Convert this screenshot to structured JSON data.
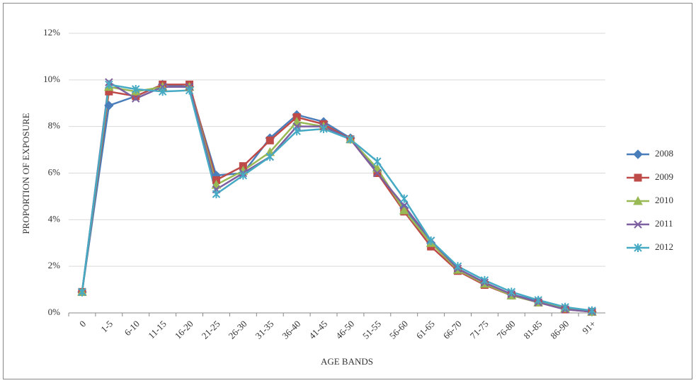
{
  "chart_data": {
    "type": "line",
    "x_label": "AGE BANDS",
    "y_label": "PROPORTION OF EXPOSURE",
    "categories": [
      "0",
      "1-5",
      "6-10",
      "11-15",
      "16-20",
      "21-25",
      "26-30",
      "31-35",
      "36-40",
      "41-45",
      "46-50",
      "51-55",
      "56-60",
      "61-65",
      "66-70",
      "71-75",
      "76-80",
      "81-85",
      "86-90",
      "91+"
    ],
    "series": [
      {
        "name": "2008",
        "color": "#4a7ebb",
        "marker": "diamond",
        "values": [
          0.9,
          8.9,
          9.3,
          9.8,
          9.7,
          5.9,
          6.0,
          7.5,
          8.5,
          8.2,
          7.5,
          6.1,
          4.5,
          3.0,
          1.9,
          1.3,
          0.8,
          0.5,
          0.2,
          0.05
        ]
      },
      {
        "name": "2009",
        "color": "#be4b48",
        "marker": "square",
        "values": [
          0.9,
          9.5,
          9.3,
          9.8,
          9.8,
          5.7,
          6.3,
          7.4,
          8.4,
          8.1,
          7.45,
          6.0,
          4.35,
          2.85,
          1.8,
          1.2,
          0.75,
          0.45,
          0.15,
          0.05
        ]
      },
      {
        "name": "2010",
        "color": "#98b954",
        "marker": "triangle",
        "values": [
          0.9,
          9.7,
          9.5,
          9.7,
          9.7,
          5.5,
          6.1,
          6.9,
          8.2,
          8.0,
          7.45,
          6.2,
          4.4,
          3.0,
          1.85,
          1.25,
          0.75,
          0.45,
          0.2,
          0.05
        ]
      },
      {
        "name": "2011",
        "color": "#7d60a0",
        "marker": "x",
        "values": [
          0.9,
          9.9,
          9.2,
          9.7,
          9.7,
          5.3,
          6.0,
          6.7,
          8.0,
          8.0,
          7.45,
          6.0,
          4.6,
          3.1,
          1.9,
          1.3,
          0.8,
          0.45,
          0.15,
          0.05
        ]
      },
      {
        "name": "2012",
        "color": "#46aac5",
        "marker": "asterisk",
        "values": [
          0.9,
          9.8,
          9.6,
          9.5,
          9.55,
          5.1,
          5.9,
          6.7,
          7.8,
          7.9,
          7.45,
          6.5,
          4.9,
          3.1,
          2.0,
          1.4,
          0.9,
          0.55,
          0.25,
          0.1
        ]
      }
    ],
    "ylim": [
      0,
      12
    ],
    "yticks": [
      {
        "value": 0,
        "label": "0%"
      },
      {
        "value": 2,
        "label": "2%"
      },
      {
        "value": 4,
        "label": "4%"
      },
      {
        "value": 6,
        "label": "6%"
      },
      {
        "value": 8,
        "label": "8%"
      },
      {
        "value": 10,
        "label": "10%"
      },
      {
        "value": 12,
        "label": "12%"
      }
    ],
    "grid": true,
    "legend": "right"
  }
}
